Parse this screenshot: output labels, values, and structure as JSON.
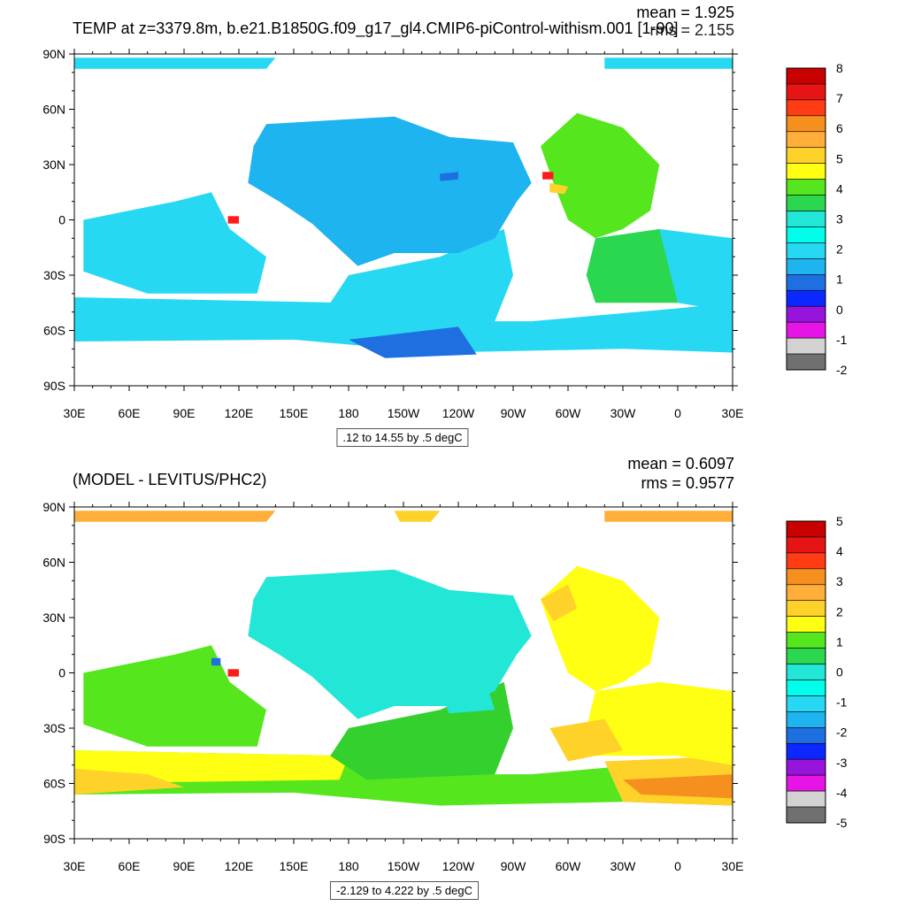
{
  "panels": [
    {
      "title": "TEMP at z=3379.8m, b.e21.B1850G.f09_g17_gl4.CMIP6-piControl-withism.001 [1-90]",
      "mean_text": "mean = 1.925",
      "rms_text": "rms = 2.155",
      "range_text": ".12 to 14.55 by .5 degC",
      "colorbar_labels": [
        "8",
        "7",
        "6",
        "5",
        "4",
        "3",
        "2",
        "1",
        "0",
        "-1",
        "-2"
      ],
      "colors": {
        "deep": "#1E6FE0",
        "mid": "#1EB4F0",
        "light": "#27D8F2",
        "green": "#55E61E",
        "green2": "#2CD750",
        "yellow": "#FFD22A",
        "red": "#FF1A1A"
      }
    },
    {
      "title": "(MODEL - LEVITUS/PHC2)",
      "mean_text": "mean = 0.6097",
      "rms_text": "rms = 0.9577",
      "range_text": "-2.129 to 4.222 by .5 degC",
      "colorbar_labels": [
        "5",
        "4",
        "3",
        "2",
        "1",
        "0",
        "-1",
        "-2",
        "-3",
        "-4",
        "-5"
      ],
      "colors": {
        "cyan": "#22E6D6",
        "green": "#34D02E",
        "green2": "#55E61E",
        "yellow": "#FFFF14",
        "gold": "#FFD22A",
        "orange": "#FFAE3A",
        "dark_orange": "#F5901E",
        "red": "#FF1A1A",
        "blue": "#1E6FE0"
      }
    }
  ],
  "axes": {
    "y_ticks": [
      "90N",
      "60N",
      "30N",
      "0",
      "30S",
      "60S",
      "90S"
    ],
    "x_ticks": [
      "30E",
      "60E",
      "90E",
      "120E",
      "150E",
      "180",
      "150W",
      "120W",
      "90W",
      "60W",
      "30W",
      "0",
      "30E"
    ]
  },
  "colorbar_colors": [
    "#C80000",
    "#E61414",
    "#FF3C14",
    "#F5901E",
    "#FFAE3A",
    "#FFD22A",
    "#FFFF14",
    "#55E61E",
    "#2CD750",
    "#22E6D6",
    "#00FFEA",
    "#27D8F2",
    "#1EB4F0",
    "#1E6FE0",
    "#0A28FF",
    "#9614DC",
    "#E614E6",
    "#D2D2D2",
    "#707070"
  ]
}
